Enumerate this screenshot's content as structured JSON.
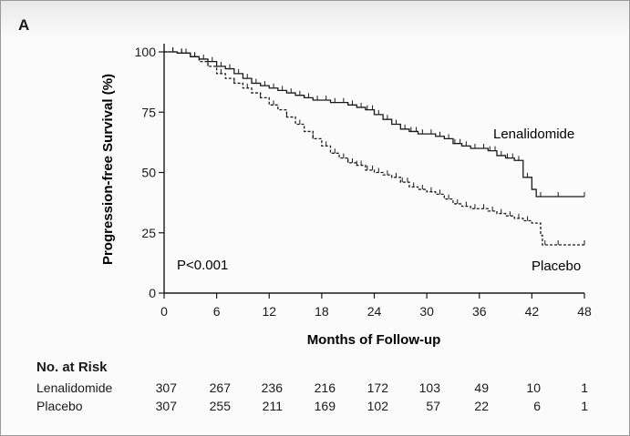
{
  "panel_label": "A",
  "colors": {
    "line": "#1a1a1a",
    "background": "#fbfbfb"
  },
  "chart_data": {
    "type": "line",
    "title": "",
    "xlabel": "Months of Follow-up",
    "ylabel": "Progression-free Survival (%)",
    "xlim": [
      0,
      48
    ],
    "ylim": [
      0,
      100
    ],
    "xticks": [
      0,
      6,
      12,
      18,
      24,
      30,
      36,
      42,
      48
    ],
    "yticks": [
      0,
      25,
      50,
      75,
      100
    ],
    "annotation": "P<0.001",
    "series": [
      {
        "name": "Lenalidomide",
        "style": "solid",
        "points": [
          [
            0,
            100
          ],
          [
            1.5,
            99.5
          ],
          [
            3,
            98
          ],
          [
            4,
            97
          ],
          [
            5,
            96
          ],
          [
            6,
            94
          ],
          [
            7,
            93
          ],
          [
            8,
            91
          ],
          [
            9,
            89
          ],
          [
            10,
            87
          ],
          [
            11,
            86
          ],
          [
            12,
            85
          ],
          [
            13,
            84
          ],
          [
            14,
            83
          ],
          [
            15,
            82
          ],
          [
            16,
            81
          ],
          [
            17,
            80
          ],
          [
            18,
            80
          ],
          [
            19,
            79
          ],
          [
            20,
            79
          ],
          [
            21,
            78
          ],
          [
            22,
            77
          ],
          [
            23,
            76
          ],
          [
            24,
            74
          ],
          [
            25,
            72
          ],
          [
            26,
            70
          ],
          [
            27,
            68
          ],
          [
            28,
            67
          ],
          [
            29,
            66
          ],
          [
            30,
            66
          ],
          [
            31,
            65
          ],
          [
            32,
            64
          ],
          [
            33,
            62
          ],
          [
            34,
            61
          ],
          [
            35,
            60
          ],
          [
            36,
            60
          ],
          [
            37,
            59
          ],
          [
            38,
            57
          ],
          [
            39,
            56
          ],
          [
            40,
            55
          ],
          [
            41,
            48
          ],
          [
            42,
            43
          ],
          [
            42.5,
            40
          ],
          [
            44,
            40
          ],
          [
            46,
            40
          ],
          [
            48,
            40
          ]
        ],
        "censor_x": [
          1,
          2,
          2.5,
          3.5,
          4.5,
          5.5,
          6.5,
          7.5,
          8.5,
          9.5,
          10.5,
          11.5,
          12.5,
          13.5,
          14.5,
          15.5,
          16.5,
          17.5,
          18.5,
          19.5,
          20.5,
          21.5,
          22.5,
          23.2,
          23.8,
          24.5,
          25.5,
          26.5,
          27.5,
          28.2,
          28.8,
          29.5,
          30.5,
          31.5,
          32.5,
          33.2,
          33.8,
          34.5,
          35.5,
          36.5,
          37.2,
          37.8,
          38.5,
          39.2,
          39.8,
          40.5,
          41.5,
          43,
          45,
          48
        ]
      },
      {
        "name": "Placebo",
        "style": "dashed",
        "points": [
          [
            0,
            100
          ],
          [
            1.5,
            99.5
          ],
          [
            3,
            98
          ],
          [
            4,
            96
          ],
          [
            5,
            94
          ],
          [
            6,
            91
          ],
          [
            7,
            89
          ],
          [
            8,
            87
          ],
          [
            9,
            85
          ],
          [
            10,
            83
          ],
          [
            11,
            81
          ],
          [
            12,
            78
          ],
          [
            13,
            76
          ],
          [
            14,
            73
          ],
          [
            15,
            70
          ],
          [
            16,
            67
          ],
          [
            17,
            64
          ],
          [
            18,
            61
          ],
          [
            19,
            58
          ],
          [
            20,
            56
          ],
          [
            21,
            54
          ],
          [
            22,
            53
          ],
          [
            23,
            51
          ],
          [
            24,
            50
          ],
          [
            25,
            49
          ],
          [
            26,
            48
          ],
          [
            27,
            46
          ],
          [
            28,
            44
          ],
          [
            29,
            43
          ],
          [
            30,
            42
          ],
          [
            31,
            41
          ],
          [
            32,
            39
          ],
          [
            33,
            37
          ],
          [
            34,
            36
          ],
          [
            35,
            35
          ],
          [
            36,
            35
          ],
          [
            37,
            34
          ],
          [
            38,
            33
          ],
          [
            39,
            32
          ],
          [
            40,
            31
          ],
          [
            41,
            30
          ],
          [
            42,
            29
          ],
          [
            43,
            24
          ],
          [
            43.2,
            20
          ],
          [
            45,
            20
          ],
          [
            46,
            20
          ],
          [
            48,
            20
          ]
        ],
        "censor_x": [
          1,
          2,
          3.5,
          5,
          6.5,
          8,
          9.5,
          11,
          12.5,
          14,
          15.5,
          17,
          18.5,
          19.5,
          20.5,
          21,
          21.5,
          22,
          22.5,
          23.2,
          23.8,
          24.5,
          25.5,
          26.5,
          27.2,
          27.8,
          28.5,
          29.5,
          30.5,
          31.5,
          32.5,
          33.5,
          34.5,
          35.5,
          36.5,
          37.5,
          38.5,
          39.5,
          40.5,
          41.5,
          43.5,
          45,
          48
        ]
      }
    ],
    "series_labels": [
      "Lenalidomide",
      "Placebo"
    ]
  },
  "risk_table": {
    "title": "No. at Risk",
    "times": [
      0,
      6,
      12,
      18,
      24,
      30,
      36,
      42,
      48
    ],
    "rows": [
      {
        "name": "Lenalidomide",
        "values": [
          "307",
          "267",
          "236",
          "216",
          "172",
          "103",
          "49",
          "10",
          "1"
        ]
      },
      {
        "name": "Placebo",
        "values": [
          "307",
          "255",
          "211",
          "169",
          "102",
          "57",
          "22",
          "6",
          "1"
        ]
      }
    ]
  }
}
